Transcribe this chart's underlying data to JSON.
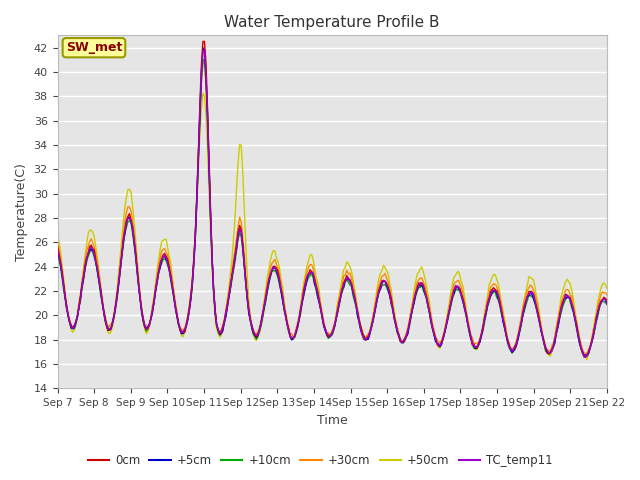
{
  "title": "Water Temperature Profile B",
  "xlabel": "Time",
  "ylabel": "Temperature(C)",
  "ylim": [
    14,
    43
  ],
  "yticks": [
    14,
    16,
    18,
    20,
    22,
    24,
    26,
    28,
    30,
    32,
    34,
    36,
    38,
    40,
    42
  ],
  "xtick_labels": [
    "Sep 7",
    "Sep 8",
    "Sep 9",
    "Sep 10",
    "Sep 11",
    "Sep 12",
    "Sep 13",
    "Sep 14",
    "Sep 15",
    "Sep 16",
    "Sep 17",
    "Sep 18",
    "Sep 19",
    "Sep 20",
    "Sep 21",
    "Sep 22"
  ],
  "bg_color": "#e5e5e5",
  "line_colors": {
    "0cm": "#cc0000",
    "+5cm": "#0000cc",
    "+10cm": "#00aa00",
    "+30cm": "#ff8800",
    "+50cm": "#cccc00",
    "TC_temp11": "#9900cc"
  },
  "lw": 1.0,
  "annotation_text": "SW_met",
  "annotation_color": "#880000",
  "annotation_bg": "#ffff99",
  "annotation_border": "#999900",
  "figsize": [
    6.4,
    4.8
  ],
  "dpi": 100
}
